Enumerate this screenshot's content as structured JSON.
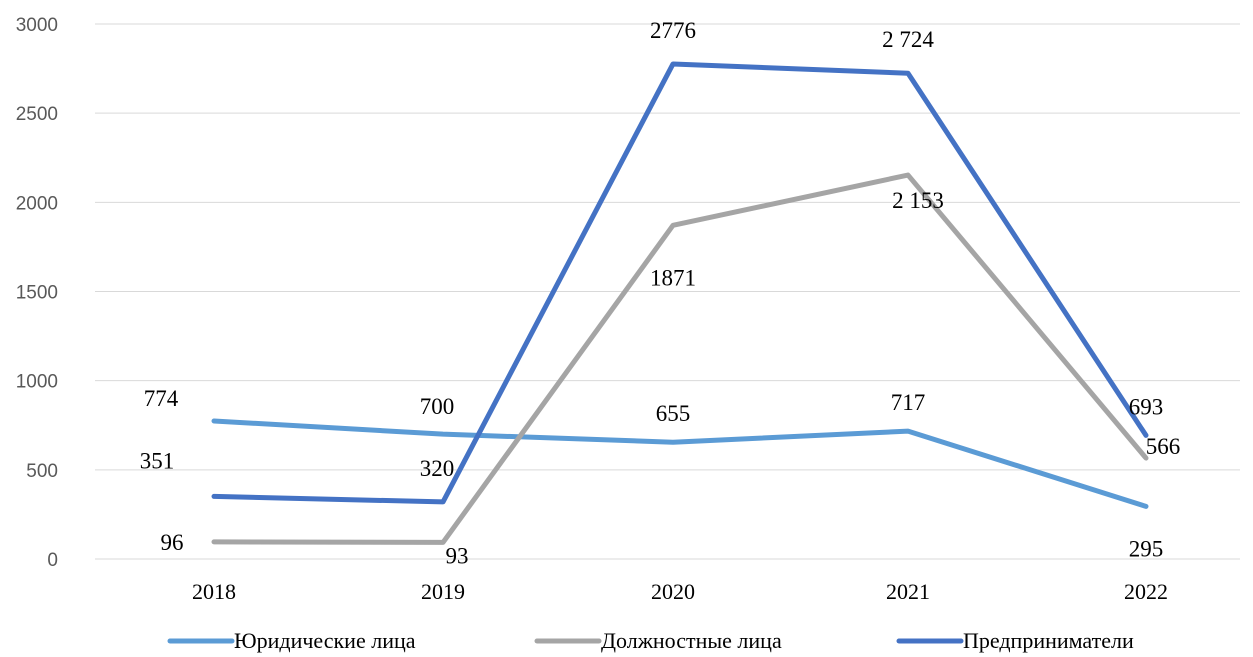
{
  "chart_data": {
    "type": "line",
    "title": "",
    "xlabel": "",
    "ylabel": "",
    "categories": [
      "2018",
      "2019",
      "2020",
      "2021",
      "2022"
    ],
    "ylim": [
      0,
      3000
    ],
    "yticks": [
      0,
      500,
      1000,
      1500,
      2000,
      2500,
      3000
    ],
    "grid": true,
    "legend_position": "bottom",
    "series": [
      {
        "name": "Юридические лица",
        "color": "#5B9BD5",
        "values": [
          774,
          700,
          655,
          717,
          295
        ],
        "labels": [
          "774",
          "700",
          "655",
          "717",
          "295"
        ]
      },
      {
        "name": "Должностные лица",
        "color": "#A5A5A5",
        "values": [
          96,
          93,
          1871,
          2153,
          566
        ],
        "labels": [
          "96",
          "93",
          "1871",
          "2 153",
          "566"
        ]
      },
      {
        "name": "Предприниматели",
        "color": "#4472C4",
        "values": [
          351,
          320,
          2776,
          2724,
          693
        ],
        "labels": [
          "351",
          "320",
          "2776",
          "2 724",
          "693"
        ]
      }
    ]
  }
}
